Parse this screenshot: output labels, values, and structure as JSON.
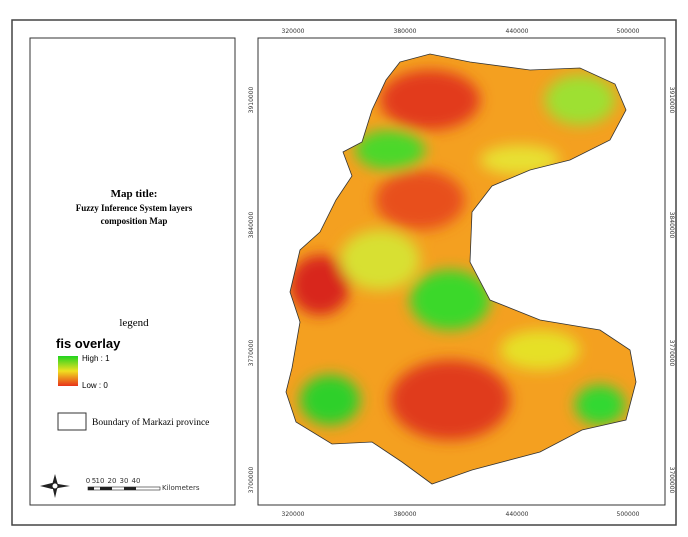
{
  "title": {
    "heading": "Map title:",
    "lines": [
      "Fuzzy Inference System layers",
      "composition Map"
    ]
  },
  "legend": {
    "heading": "legend",
    "layer": "fis overlay",
    "high": "High : 1",
    "low": "Low : 0",
    "boundary": "Boundary of Markazi province"
  },
  "scale": {
    "ticks": [
      "0",
      "5",
      "10",
      "20",
      "30",
      "40"
    ],
    "unit": "Kilometers"
  },
  "coords": {
    "x": [
      "320000",
      "380000",
      "440000",
      "500000"
    ],
    "y": [
      "3910000",
      "3840000",
      "3770000",
      "3700000"
    ]
  }
}
